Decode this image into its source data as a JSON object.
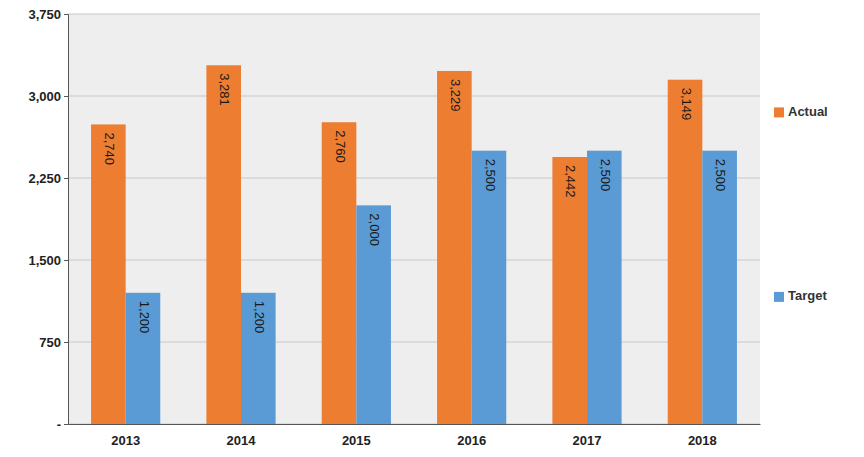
{
  "chart_data": {
    "type": "bar",
    "categories": [
      "2013",
      "2014",
      "2015",
      "2016",
      "2017",
      "2018"
    ],
    "series": [
      {
        "name": "Actual",
        "color": "#ed7d31",
        "values": [
          2740,
          3281,
          2760,
          3229,
          2442,
          3149
        ],
        "value_labels": [
          "2,740",
          "3,281",
          "2,760",
          "3,229",
          "2,442",
          "3,149"
        ]
      },
      {
        "name": "Target",
        "color": "#5b9bd5",
        "values": [
          1200,
          1200,
          2000,
          2500,
          2500,
          2500
        ],
        "value_labels": [
          "1,200",
          "1,200",
          "2,000",
          "2,500",
          "2,500",
          "2,500"
        ]
      }
    ],
    "ylim": [
      0,
      3750
    ],
    "yticks": [
      {
        "value": 0,
        "label": "-"
      },
      750,
      {
        "value": 1500,
        "label": "1,500"
      },
      {
        "value": 2250,
        "label": "2,250"
      },
      {
        "value": 3000,
        "label": "3,000"
      },
      {
        "value": 3750,
        "label": "3,750"
      }
    ],
    "grid": true,
    "legend": "right",
    "data_labels": true
  }
}
